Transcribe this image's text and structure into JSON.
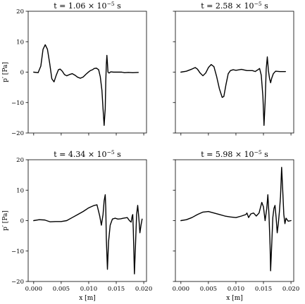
{
  "chart_data": [
    {
      "type": "line",
      "title": "t = 1.06 × 10⁻⁵ s",
      "title_main": "t = 1.06 × 10",
      "title_exp": "−5",
      "title_unit": " s",
      "xlabel": "",
      "ylabel": "p′ [Pa]",
      "xlim": [
        -0.001,
        0.0205
      ],
      "ylim": [
        -20,
        20
      ],
      "xticks": [
        0.0,
        0.005,
        0.01,
        0.015,
        0.02
      ],
      "xtick_labels": [],
      "yticks": [
        -20,
        -10,
        0,
        10,
        20
      ],
      "ytick_labels": [
        "−20",
        "−10",
        "0",
        "10",
        "20"
      ],
      "grid": false,
      "series": [
        {
          "color": "#000000",
          "x": [
            0.0,
            0.0008,
            0.0013,
            0.0017,
            0.0021,
            0.0025,
            0.0029,
            0.0033,
            0.0037,
            0.0041,
            0.0045,
            0.0048,
            0.0052,
            0.0056,
            0.006,
            0.0065,
            0.007,
            0.0075,
            0.008,
            0.0085,
            0.009,
            0.0095,
            0.01,
            0.0103,
            0.0107,
            0.011,
            0.0114,
            0.0118,
            0.0121,
            0.0124,
            0.0126,
            0.0128,
            0.013,
            0.0131,
            0.0132,
            0.0133,
            0.0134,
            0.0135,
            0.0137,
            0.014,
            0.0145,
            0.015,
            0.0155,
            0.016,
            0.0165,
            0.0172,
            0.018,
            0.019
          ],
          "y": [
            0.0,
            -0.2,
            2.0,
            7.5,
            9.0,
            7.5,
            3.0,
            -2.2,
            -3.2,
            -1.0,
            0.8,
            1.0,
            0.3,
            -0.8,
            -1.2,
            -0.8,
            -0.5,
            -1.0,
            -1.7,
            -2.0,
            -1.6,
            -0.7,
            0.1,
            0.5,
            0.8,
            1.2,
            1.3,
            0.8,
            -1.5,
            -6.0,
            -12.0,
            -17.5,
            -12.0,
            -3.0,
            2.5,
            5.5,
            3.0,
            0.0,
            -0.3,
            0.1,
            0.0,
            0.0,
            0.0,
            0.0,
            -0.2,
            -0.1,
            -0.2,
            -0.1
          ]
        }
      ]
    },
    {
      "type": "line",
      "title": "t = 2.58 × 10⁻⁵ s",
      "title_main": "t = 2.58 × 10",
      "title_exp": "−5",
      "title_unit": " s",
      "xlabel": "",
      "ylabel": "",
      "xlim": [
        -0.001,
        0.0205
      ],
      "ylim": [
        -20,
        20
      ],
      "xticks": [
        0.0,
        0.005,
        0.01,
        0.015,
        0.02
      ],
      "xtick_labels": [],
      "yticks": [
        -20,
        -10,
        0,
        10,
        20
      ],
      "ytick_labels": [],
      "grid": false,
      "series": [
        {
          "color": "#000000",
          "x": [
            0.0,
            0.001,
            0.002,
            0.0026,
            0.003,
            0.0035,
            0.004,
            0.0045,
            0.005,
            0.0055,
            0.006,
            0.0065,
            0.007,
            0.0075,
            0.0078,
            0.0082,
            0.0086,
            0.009,
            0.0095,
            0.01,
            0.011,
            0.012,
            0.013,
            0.0135,
            0.014,
            0.0143,
            0.0146,
            0.0149,
            0.0151,
            0.0153,
            0.0155,
            0.0157,
            0.0159,
            0.0161,
            0.0163,
            0.0165,
            0.0168,
            0.0172,
            0.018,
            0.019
          ],
          "y": [
            0.0,
            0.3,
            1.0,
            1.5,
            1.0,
            -0.3,
            -1.2,
            -0.3,
            1.5,
            2.5,
            1.8,
            -1.5,
            -5.5,
            -8.3,
            -8.0,
            -4.0,
            -0.5,
            0.5,
            0.8,
            0.6,
            0.9,
            0.5,
            0.5,
            0.2,
            0.8,
            1.2,
            -1.0,
            -8.0,
            -17.5,
            -10.0,
            1.0,
            5.0,
            0.5,
            -2.0,
            -3.5,
            -2.0,
            -0.5,
            0.3,
            0.2,
            0.2
          ]
        }
      ]
    },
    {
      "type": "line",
      "title": "t = 4.34 × 10⁻⁵ s",
      "title_main": "t = 4.34 × 10",
      "title_exp": "−5",
      "title_unit": " s",
      "xlabel": "x [m]",
      "ylabel": "p′ [Pa]",
      "xlim": [
        -0.001,
        0.0205
      ],
      "ylim": [
        -20,
        20
      ],
      "xticks": [
        0.0,
        0.005,
        0.01,
        0.015,
        0.02
      ],
      "xtick_labels": [
        "0.000",
        "0.005",
        "0.010",
        "0.015",
        "0.020"
      ],
      "yticks": [
        -20,
        -10,
        0,
        10,
        20
      ],
      "ytick_labels": [
        "−20",
        "−10",
        "0",
        "10",
        "20"
      ],
      "grid": false,
      "series": [
        {
          "color": "#000000",
          "x": [
            0.0,
            0.001,
            0.002,
            0.003,
            0.004,
            0.005,
            0.006,
            0.007,
            0.008,
            0.009,
            0.01,
            0.011,
            0.0115,
            0.0118,
            0.012,
            0.0123,
            0.0126,
            0.0128,
            0.013,
            0.0131,
            0.0132,
            0.0134,
            0.0136,
            0.0139,
            0.0143,
            0.0148,
            0.0153,
            0.0158,
            0.0163,
            0.017,
            0.0174,
            0.0177,
            0.0179,
            0.018,
            0.0181,
            0.0182,
            0.0183,
            0.0185,
            0.0187,
            0.0189,
            0.0191,
            0.0193,
            0.0195,
            0.0197
          ],
          "y": [
            0.0,
            0.3,
            0.2,
            -0.4,
            -0.3,
            -0.3,
            0.0,
            1.0,
            2.0,
            3.0,
            4.2,
            5.0,
            5.2,
            3.0,
            1.5,
            -1.5,
            2.0,
            6.5,
            8.5,
            4.0,
            -6.0,
            -16.0,
            -7.0,
            -1.5,
            0.5,
            0.8,
            0.5,
            0.6,
            0.8,
            1.0,
            0.0,
            -0.5,
            1.5,
            2.0,
            -3.0,
            -10.0,
            -17.5,
            -8.0,
            2.0,
            5.0,
            1.0,
            -4.0,
            -1.5,
            0.5
          ]
        }
      ]
    },
    {
      "type": "line",
      "title": "t = 5.98 × 10⁻⁵ s",
      "title_main": "t = 5.98 × 10",
      "title_exp": "−5",
      "title_unit": " s",
      "xlabel": "x [m]",
      "ylabel": "",
      "xlim": [
        -0.001,
        0.0205
      ],
      "ylim": [
        -20,
        20
      ],
      "xticks": [
        0.0,
        0.005,
        0.01,
        0.015,
        0.02
      ],
      "xtick_labels": [
        "0.000",
        "0.005",
        "0.010",
        "0.015",
        "0.020"
      ],
      "yticks": [
        -20,
        -10,
        0,
        10,
        20
      ],
      "ytick_labels": [],
      "grid": false,
      "series": [
        {
          "color": "#000000",
          "x": [
            0.0,
            0.001,
            0.002,
            0.003,
            0.004,
            0.005,
            0.006,
            0.007,
            0.008,
            0.009,
            0.01,
            0.011,
            0.0118,
            0.012,
            0.0123,
            0.0127,
            0.0132,
            0.0137,
            0.0142,
            0.0147,
            0.015,
            0.0153,
            0.0156,
            0.0158,
            0.016,
            0.0162,
            0.0163,
            0.0165,
            0.0167,
            0.0169,
            0.0171,
            0.0173,
            0.0175,
            0.0177,
            0.0179,
            0.0181,
            0.0183,
            0.0185,
            0.0187,
            0.0189,
            0.0191,
            0.0195,
            0.02
          ],
          "y": [
            0.0,
            0.3,
            1.0,
            2.0,
            2.8,
            3.0,
            2.5,
            2.0,
            1.5,
            1.2,
            1.0,
            1.5,
            2.0,
            2.5,
            1.0,
            2.2,
            2.5,
            1.5,
            2.5,
            6.0,
            4.5,
            0.0,
            4.0,
            8.5,
            2.0,
            -8.0,
            -16.5,
            -8.0,
            1.0,
            4.0,
            5.0,
            1.0,
            -4.0,
            -1.0,
            3.0,
            8.0,
            17.5,
            10.0,
            2.0,
            -1.0,
            0.8,
            -0.2,
            0.0
          ]
        }
      ]
    }
  ]
}
